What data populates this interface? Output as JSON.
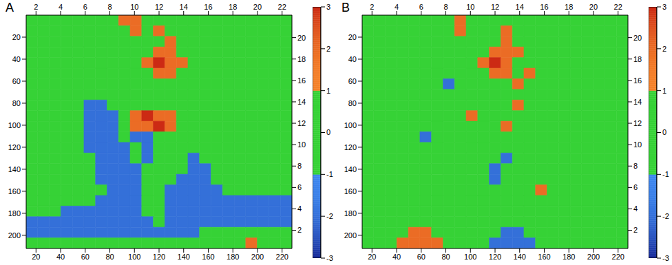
{
  "chart_data": [
    {
      "type": "heatmap",
      "title": "A",
      "xlim": [
        12,
        228
      ],
      "xticks": [
        20,
        40,
        60,
        80,
        100,
        120,
        140,
        160,
        180,
        200,
        220
      ],
      "ylim": [
        212,
        0
      ],
      "yticks": [
        20,
        40,
        60,
        80,
        100,
        120,
        140,
        160,
        180,
        200
      ],
      "x2lim": [
        1.2,
        22.8
      ],
      "x2ticks": [
        2,
        4,
        6,
        8,
        10,
        12,
        14,
        16,
        18,
        20,
        22
      ],
      "y2lim": [
        0.3,
        22.1
      ],
      "y2ticks": [
        2,
        4,
        6,
        8,
        10,
        12,
        14,
        16,
        18,
        20
      ],
      "colorbar": {
        "lim": [
          -3,
          3
        ],
        "ticks": [
          -3,
          -2,
          -1,
          0,
          1,
          2,
          3
        ]
      },
      "cells": [
        [
          0,
          0,
          0,
          0,
          0,
          0,
          0,
          0,
          2,
          2,
          0,
          0,
          0,
          0,
          0,
          0,
          0,
          0,
          0,
          0,
          0,
          0,
          0
        ],
        [
          0,
          0,
          0,
          0,
          0,
          0,
          0,
          0,
          0,
          2,
          0,
          2,
          0,
          0,
          0,
          0,
          0,
          0,
          0,
          0,
          0,
          0,
          0
        ],
        [
          0,
          0,
          0,
          0,
          0,
          0,
          0,
          0,
          0,
          0,
          0,
          0,
          2,
          0,
          0,
          0,
          0,
          0,
          0,
          0,
          0,
          0,
          0
        ],
        [
          0,
          0,
          0,
          0,
          0,
          0,
          0,
          0,
          0,
          0,
          0,
          2,
          2,
          0,
          0,
          0,
          0,
          0,
          0,
          0,
          0,
          0,
          0
        ],
        [
          0,
          0,
          0,
          0,
          0,
          0,
          0,
          0,
          0,
          0,
          2,
          3,
          2,
          2,
          0,
          0,
          0,
          0,
          0,
          0,
          0,
          0,
          0
        ],
        [
          0,
          0,
          0,
          0,
          0,
          0,
          0,
          0,
          0,
          0,
          0,
          2,
          2,
          0,
          0,
          0,
          0,
          0,
          0,
          0,
          0,
          0,
          0
        ],
        [
          0,
          0,
          0,
          0,
          0,
          0,
          0,
          0,
          0,
          0,
          0,
          0,
          0,
          0,
          0,
          0,
          0,
          0,
          0,
          0,
          0,
          0,
          0
        ],
        [
          0,
          0,
          0,
          0,
          0,
          0,
          0,
          0,
          0,
          0,
          0,
          0,
          0,
          0,
          0,
          0,
          0,
          0,
          0,
          0,
          0,
          0,
          0
        ],
        [
          0,
          0,
          0,
          0,
          0,
          -2,
          -2,
          0,
          0,
          0,
          0,
          0,
          0,
          0,
          0,
          0,
          0,
          0,
          0,
          0,
          0,
          0,
          0
        ],
        [
          0,
          0,
          0,
          0,
          0,
          -2,
          -2,
          -2,
          0,
          2,
          3,
          2,
          2,
          0,
          0,
          0,
          0,
          0,
          0,
          0,
          0,
          0,
          0
        ],
        [
          0,
          0,
          0,
          0,
          0,
          -2,
          -2,
          -2,
          0,
          2,
          2,
          3,
          2,
          0,
          0,
          0,
          0,
          0,
          0,
          0,
          0,
          0,
          0
        ],
        [
          0,
          0,
          0,
          0,
          0,
          -2,
          -2,
          -2,
          0,
          -2,
          -2,
          0,
          0,
          0,
          0,
          0,
          0,
          0,
          0,
          0,
          0,
          0,
          0
        ],
        [
          0,
          0,
          0,
          0,
          0,
          -2,
          -2,
          -2,
          -2,
          0,
          -2,
          0,
          0,
          0,
          0,
          0,
          0,
          0,
          0,
          0,
          0,
          0,
          0
        ],
        [
          0,
          0,
          0,
          0,
          0,
          0,
          -2,
          -2,
          -2,
          0,
          -2,
          0,
          0,
          0,
          -2,
          0,
          0,
          0,
          0,
          0,
          0,
          0,
          0
        ],
        [
          0,
          0,
          0,
          0,
          0,
          0,
          -2,
          -2,
          -2,
          -2,
          0,
          0,
          0,
          0,
          -2,
          -2,
          0,
          0,
          0,
          0,
          0,
          0,
          0
        ],
        [
          0,
          0,
          0,
          0,
          0,
          0,
          -2,
          -2,
          -2,
          -2,
          0,
          0,
          0,
          -2,
          -2,
          -2,
          0,
          0,
          0,
          0,
          0,
          0,
          0
        ],
        [
          0,
          0,
          0,
          0,
          0,
          0,
          0,
          -2,
          -2,
          -2,
          0,
          0,
          -2,
          -2,
          -2,
          -2,
          -2,
          0,
          0,
          0,
          0,
          0,
          0
        ],
        [
          0,
          0,
          0,
          0,
          0,
          0,
          -2,
          -2,
          -2,
          -2,
          0,
          0,
          -2,
          -2,
          -2,
          -2,
          -2,
          -2,
          -2,
          -2,
          -2,
          -2,
          -2
        ],
        [
          0,
          0,
          0,
          -2,
          -2,
          -2,
          -2,
          -2,
          -2,
          -2,
          0,
          0,
          -2,
          -2,
          -2,
          -2,
          -2,
          -2,
          -2,
          -2,
          -2,
          -2,
          -2
        ],
        [
          -2,
          -2,
          -2,
          -2,
          -2,
          -2,
          -2,
          -2,
          -2,
          -2,
          -2,
          0,
          -2,
          -2,
          -2,
          -2,
          -2,
          -2,
          -2,
          -2,
          -2,
          -2,
          -2
        ],
        [
          -2,
          -2,
          -2,
          -2,
          -2,
          -2,
          -2,
          -2,
          -2,
          -2,
          -2,
          -2,
          -2,
          -2,
          -2,
          0,
          0,
          0,
          0,
          0,
          0,
          0,
          0
        ],
        [
          0,
          0,
          0,
          0,
          0,
          0,
          0,
          0,
          0,
          0,
          0,
          0,
          0,
          0,
          0,
          0,
          0,
          0,
          0,
          2,
          0,
          0,
          0
        ]
      ]
    },
    {
      "type": "heatmap",
      "title": "B",
      "xlim": [
        12,
        228
      ],
      "xticks": [
        20,
        40,
        60,
        80,
        100,
        120,
        140,
        160,
        180,
        200,
        220
      ],
      "ylim": [
        212,
        0
      ],
      "yticks": [
        20,
        40,
        60,
        80,
        100,
        120,
        140,
        160,
        180,
        200
      ],
      "x2lim": [
        1.2,
        22.8
      ],
      "x2ticks": [
        2,
        4,
        6,
        8,
        10,
        12,
        14,
        16,
        18,
        20,
        22
      ],
      "y2lim": [
        0.3,
        22.1
      ],
      "y2ticks": [
        2,
        4,
        6,
        8,
        10,
        12,
        14,
        16,
        18,
        20
      ],
      "colorbar": {
        "lim": [
          -3,
          3
        ],
        "ticks": [
          -3,
          -2,
          -1,
          0,
          1,
          2,
          3
        ]
      },
      "cells": [
        [
          0,
          0,
          0,
          0,
          0,
          0,
          0,
          0,
          2,
          0,
          0,
          0,
          0,
          0,
          0,
          0,
          0,
          0,
          0,
          0,
          0,
          0,
          0
        ],
        [
          0,
          0,
          0,
          0,
          0,
          0,
          0,
          0,
          2,
          0,
          0,
          0,
          2,
          0,
          0,
          0,
          0,
          0,
          0,
          0,
          0,
          0,
          0
        ],
        [
          0,
          0,
          0,
          0,
          0,
          0,
          0,
          0,
          0,
          0,
          0,
          0,
          2,
          0,
          0,
          0,
          0,
          0,
          0,
          0,
          0,
          0,
          0
        ],
        [
          0,
          0,
          0,
          0,
          0,
          0,
          0,
          0,
          0,
          0,
          0,
          2,
          2,
          2,
          0,
          0,
          0,
          0,
          0,
          0,
          0,
          0,
          0
        ],
        [
          0,
          0,
          0,
          0,
          0,
          0,
          0,
          0,
          0,
          0,
          2,
          3,
          2,
          0,
          0,
          0,
          0,
          0,
          0,
          0,
          0,
          0,
          0
        ],
        [
          0,
          0,
          0,
          0,
          0,
          0,
          0,
          0,
          0,
          0,
          0,
          2,
          2,
          0,
          2,
          0,
          0,
          0,
          0,
          0,
          0,
          0,
          0
        ],
        [
          0,
          0,
          0,
          0,
          0,
          0,
          0,
          -2,
          0,
          0,
          0,
          0,
          0,
          2,
          0,
          0,
          0,
          0,
          0,
          0,
          0,
          0,
          0
        ],
        [
          0,
          0,
          0,
          0,
          0,
          0,
          0,
          0,
          0,
          0,
          0,
          0,
          0,
          0,
          0,
          0,
          0,
          0,
          0,
          0,
          0,
          0,
          0
        ],
        [
          0,
          0,
          0,
          0,
          0,
          0,
          0,
          0,
          0,
          0,
          0,
          0,
          0,
          2,
          0,
          0,
          0,
          0,
          0,
          0,
          0,
          0,
          0
        ],
        [
          0,
          0,
          0,
          0,
          0,
          0,
          0,
          0,
          0,
          2,
          0,
          0,
          0,
          0,
          0,
          0,
          0,
          0,
          0,
          0,
          0,
          0,
          0
        ],
        [
          0,
          0,
          0,
          0,
          0,
          0,
          0,
          0,
          0,
          0,
          0,
          0,
          2,
          0,
          0,
          0,
          0,
          0,
          0,
          0,
          0,
          0,
          0
        ],
        [
          0,
          0,
          0,
          0,
          0,
          -2,
          0,
          0,
          0,
          0,
          0,
          0,
          0,
          0,
          0,
          0,
          0,
          0,
          0,
          0,
          0,
          0,
          0
        ],
        [
          0,
          0,
          0,
          0,
          0,
          0,
          0,
          0,
          0,
          0,
          0,
          0,
          0,
          0,
          0,
          0,
          0,
          0,
          0,
          0,
          0,
          0,
          0
        ],
        [
          0,
          0,
          0,
          0,
          0,
          0,
          0,
          0,
          0,
          0,
          0,
          0,
          -2,
          0,
          0,
          0,
          0,
          0,
          0,
          0,
          0,
          0,
          0
        ],
        [
          0,
          0,
          0,
          0,
          0,
          0,
          0,
          0,
          0,
          0,
          0,
          -2,
          0,
          0,
          0,
          0,
          0,
          0,
          0,
          0,
          0,
          0,
          0
        ],
        [
          0,
          0,
          0,
          0,
          0,
          0,
          0,
          0,
          0,
          0,
          0,
          -2,
          0,
          0,
          0,
          0,
          0,
          0,
          0,
          0,
          0,
          0,
          0
        ],
        [
          0,
          0,
          0,
          0,
          0,
          0,
          0,
          0,
          0,
          0,
          0,
          0,
          0,
          0,
          0,
          2,
          0,
          0,
          0,
          0,
          0,
          0,
          0
        ],
        [
          0,
          0,
          0,
          0,
          0,
          0,
          0,
          0,
          0,
          0,
          0,
          0,
          0,
          0,
          0,
          0,
          0,
          0,
          0,
          0,
          0,
          0,
          0
        ],
        [
          0,
          0,
          0,
          0,
          0,
          0,
          0,
          0,
          0,
          0,
          0,
          0,
          0,
          0,
          0,
          0,
          0,
          0,
          0,
          0,
          0,
          0,
          0
        ],
        [
          0,
          0,
          0,
          0,
          0,
          0,
          0,
          0,
          0,
          0,
          0,
          0,
          0,
          0,
          0,
          0,
          0,
          0,
          0,
          0,
          0,
          0,
          0
        ],
        [
          0,
          0,
          0,
          0,
          2,
          2,
          0,
          0,
          0,
          0,
          0,
          0,
          -2,
          -2,
          0,
          0,
          0,
          0,
          0,
          0,
          0,
          0,
          0
        ],
        [
          0,
          0,
          0,
          2,
          2,
          2,
          2,
          0,
          0,
          0,
          0,
          -2,
          -2,
          -2,
          -2,
          0,
          0,
          0,
          0,
          0,
          0,
          0,
          0
        ]
      ]
    }
  ]
}
